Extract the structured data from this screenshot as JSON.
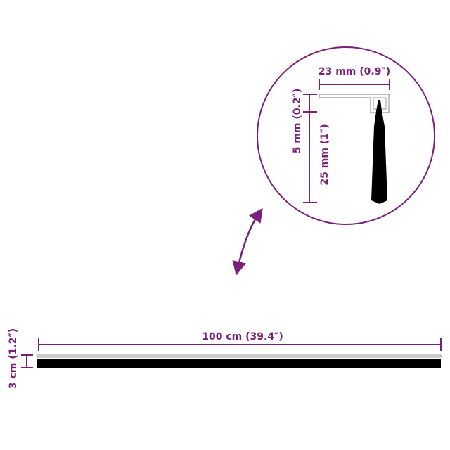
{
  "colors": {
    "dimension": "#7a1f7a",
    "brush": "#000000",
    "profile": "#9a9a9a"
  },
  "detail": {
    "width_label": "23 mm (0.9″)",
    "base_height_label": "5 mm (0.2″)",
    "brush_height_label": "25 mm (1″)"
  },
  "main": {
    "length_label": "100 cm (39.4″)",
    "height_label": "3 cm (1.2″)"
  },
  "icons": {
    "zoom_arrow": "curved-double-arrow-icon"
  }
}
